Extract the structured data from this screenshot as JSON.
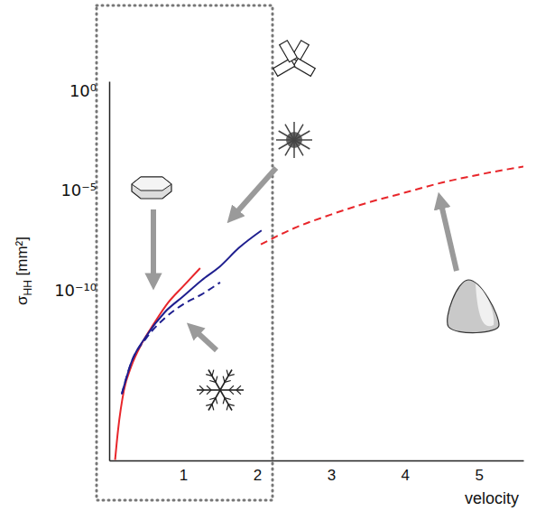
{
  "chart_data": {
    "type": "line",
    "xlabel": "velocity",
    "ylabel": "σHH [mm²]",
    "log": "y",
    "grid": false,
    "xlim": [
      0,
      5.6
    ],
    "xticks": [
      1,
      2,
      3,
      4,
      5
    ],
    "ylim": [
      3e-19,
      3
    ],
    "yticks": [
      {
        "value": 1,
        "label": "10⁰"
      },
      {
        "value": 1e-05,
        "label": "10⁻⁵"
      },
      {
        "value": 1e-10,
        "label": "10⁻¹⁰"
      }
    ],
    "series": [
      {
        "color": "#e8262b",
        "line_style": "solid",
        "x": [
          0.08,
          0.12,
          0.2,
          0.3,
          0.45,
          0.6,
          0.8,
          1.0,
          1.23
        ],
        "values": [
          3.2e-19,
          1e-17,
          1e-15,
          1.6e-14,
          2.5e-13,
          2e-12,
          2.5e-11,
          1.6e-10,
          1.3e-09
        ]
      },
      {
        "color": "#1f1f8f",
        "line_style": "solid",
        "x": [
          0.17,
          0.3,
          0.5,
          0.75,
          1.0,
          1.25,
          1.5,
          1.75,
          2.06
        ],
        "values": [
          6.3e-16,
          2.5e-14,
          5e-13,
          7.9e-12,
          5e-11,
          3.2e-10,
          1.6e-09,
          1.3e-08,
          1e-07
        ]
      },
      {
        "color": "#1f1f8f",
        "line_style": "dashed",
        "x": [
          0.17,
          0.3,
          0.5,
          0.75,
          1.0,
          1.25,
          1.5
        ],
        "values": [
          6.3e-16,
          2.5e-14,
          4e-13,
          4e-12,
          2e-11,
          6.3e-11,
          2.5e-10
        ]
      },
      {
        "color": "#e8262b",
        "line_style": "dashed",
        "x": [
          2.05,
          2.5,
          3,
          3.5,
          4,
          4.5,
          5,
          5.6
        ],
        "values": [
          2e-08,
          1.3e-07,
          6.3e-07,
          2.5e-06,
          7.9e-06,
          2.5e-05,
          6.3e-05,
          0.00016
        ]
      }
    ]
  }
}
